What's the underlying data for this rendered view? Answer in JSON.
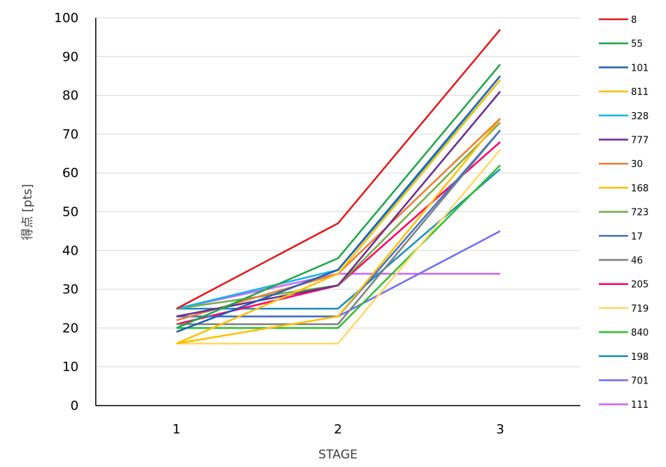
{
  "chart_data": {
    "type": "line",
    "title": "",
    "xlabel": "STAGE",
    "ylabel": "得点 [pts]",
    "categories": [
      "1",
      "2",
      "3"
    ],
    "ylim": [
      0,
      100
    ],
    "yticks": [
      "0",
      "10",
      "20",
      "30",
      "40",
      "50",
      "60",
      "70",
      "80",
      "90",
      "100"
    ],
    "grid": true,
    "legend_position": "right",
    "series": [
      {
        "name": "8",
        "color": "#e31a1c",
        "values": [
          25,
          47,
          97
        ]
      },
      {
        "name": "55",
        "color": "#1fa64a",
        "values": [
          20,
          38,
          88
        ]
      },
      {
        "name": "101",
        "color": "#1f5fb4",
        "values": [
          19,
          35,
          85
        ]
      },
      {
        "name": "811",
        "color": "#ffc000",
        "values": [
          16,
          34,
          84
        ]
      },
      {
        "name": "328",
        "color": "#18b4e6",
        "values": [
          25,
          35,
          84
        ]
      },
      {
        "name": "777",
        "color": "#6a2c91",
        "values": [
          23,
          31,
          81
        ]
      },
      {
        "name": "30",
        "color": "#ed7d31",
        "values": [
          22,
          34,
          74
        ]
      },
      {
        "name": "168",
        "color": "#ffc000",
        "values": [
          16,
          23,
          74
        ]
      },
      {
        "name": "723",
        "color": "#70ad47",
        "values": [
          25,
          31,
          73
        ]
      },
      {
        "name": "17",
        "color": "#4472c4",
        "values": [
          23,
          23,
          71
        ]
      },
      {
        "name": "46",
        "color": "#808080",
        "values": [
          21,
          21,
          71
        ]
      },
      {
        "name": "205",
        "color": "#ff0066",
        "values": [
          21,
          31,
          68
        ]
      },
      {
        "name": "719",
        "color": "#ffd966",
        "values": [
          16,
          16,
          66
        ]
      },
      {
        "name": "840",
        "color": "#2fc02f",
        "values": [
          20,
          20,
          62
        ]
      },
      {
        "name": "198",
        "color": "#1b8fc0",
        "values": [
          25,
          25,
          61
        ]
      },
      {
        "name": "701",
        "color": "#6f6ff0",
        "values": [
          23,
          23,
          45
        ]
      },
      {
        "name": "111",
        "color": "#cc66ff",
        "values": [
          25,
          34,
          34
        ]
      }
    ]
  }
}
